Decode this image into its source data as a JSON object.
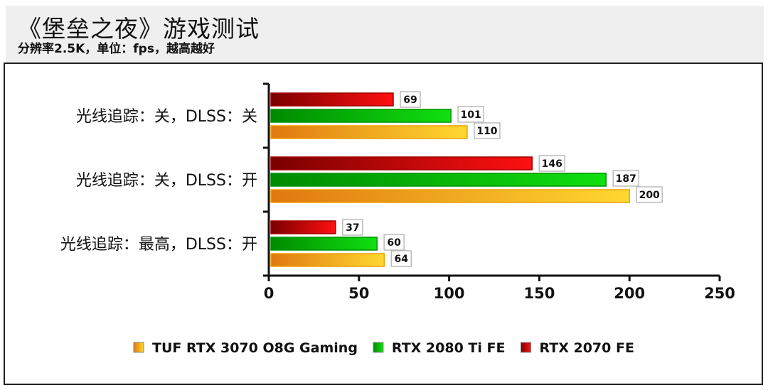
{
  "header": {
    "title": "《堡垒之夜》游戏测试",
    "subtitle": "分辨率2.5K，单位：fps，越高越好"
  },
  "chart_data": {
    "type": "bar",
    "orientation": "horizontal",
    "categories": [
      "光线追踪：关，DLSS：关",
      "光线追踪：关，DLSS：开",
      "光线追踪：最高，DLSS：开"
    ],
    "series": [
      {
        "name": "RTX 2070 FE",
        "values": [
          69,
          146,
          37
        ],
        "color": "#d00000"
      },
      {
        "name": "RTX 2080 Ti FE",
        "values": [
          101,
          187,
          60
        ],
        "color": "#00c000"
      },
      {
        "name": "TUF RTX 3070 O8G Gaming",
        "values": [
          110,
          200,
          64
        ],
        "color": "#f0a020"
      }
    ],
    "xlim": [
      0,
      250
    ],
    "xticks": [
      0,
      50,
      100,
      150,
      200,
      250
    ],
    "legend": {
      "position": "bottom",
      "order": [
        "TUF RTX 3070 O8G Gaming",
        "RTX 2080 Ti FE",
        "RTX 2070 FE"
      ]
    },
    "grid": false
  }
}
